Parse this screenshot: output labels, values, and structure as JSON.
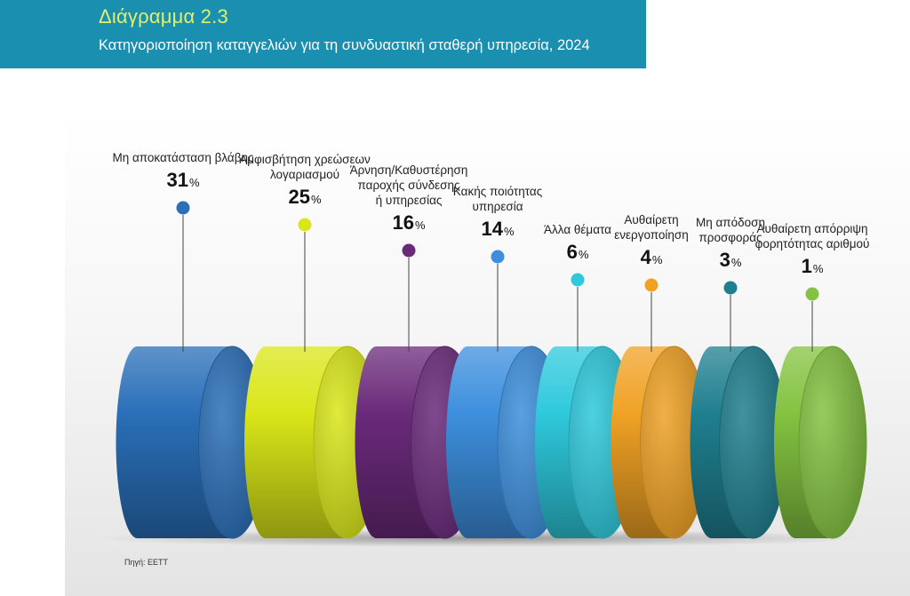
{
  "header": {
    "title": "Διάγραμμα 2.3",
    "subtitle": "Κατηγοριοποίηση καταγγελιών για τη συνδυαστική σταθερή υπηρεσία, 2024"
  },
  "source": "Πηγή: ΕΕΤΤ",
  "chart_data": {
    "type": "bar",
    "unit": "%",
    "categories": [
      "Μη αποκατάσταση βλάβης",
      "Αμφισβήτηση χρεώσεων λογαριασμού",
      "Άρνηση/Καθυστέρηση παροχής σύνδεσης ή υπηρεσίας",
      "Κακής ποιότητας υπηρεσία",
      "Άλλα θέματα",
      "Αυθαίρετη ενεργοποίηση",
      "Μη απόδοση προσφοράς",
      "Αυθαίρετη απόρριψη φορητότητας αριθμού"
    ],
    "label_lines": [
      [
        "Μη αποκατάσταση βλάβης"
      ],
      [
        "Αμφισβήτηση χρεώσεων",
        "λογαριασμού"
      ],
      [
        "Άρνηση/Καθυστέρηση",
        "παροχής σύνδεσης",
        "ή υπηρεσίας"
      ],
      [
        "Κακής ποιότητας",
        "υπηρεσία"
      ],
      [
        "Άλλα θέματα"
      ],
      [
        "Αυθαίρετη",
        "ενεργοποίηση"
      ],
      [
        "Μη απόδοση",
        "προσφοράς"
      ],
      [
        "Αυθαίρετη απόρριψη",
        "φορητότητας αριθμού"
      ]
    ],
    "values": [
      31,
      25,
      16,
      14,
      6,
      4,
      3,
      1
    ],
    "colors": [
      "#2a6fb8",
      "#d9e619",
      "#6a2a7a",
      "#3d8fdd",
      "#2ec9dc",
      "#f0a225",
      "#1f7f8f",
      "#84c341"
    ]
  }
}
